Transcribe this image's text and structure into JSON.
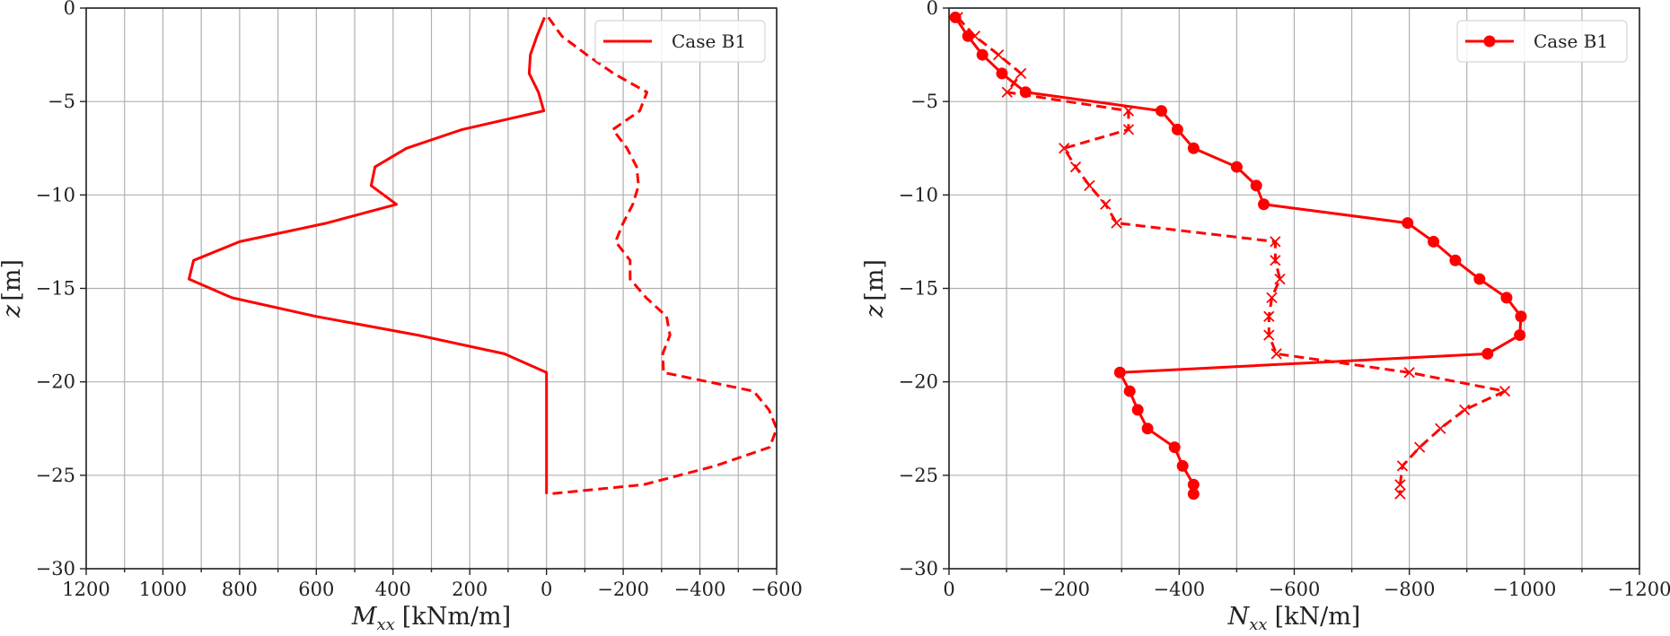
{
  "figure": {
    "colors": {
      "series": "#ff0000",
      "grid": "#b0b0b0",
      "axis": "#222222"
    }
  },
  "chart_data": [
    {
      "id": "moment",
      "type": "line",
      "title": "",
      "xlabel": "M_xx [kNm/m]",
      "xlabel_main": "M",
      "xlabel_sub": "xx",
      "xlabel_unit": "[kNm/m]",
      "ylabel": "z [m]",
      "ylabel_main": "z",
      "ylabel_unit": "[m]",
      "xlim": [
        1200,
        -600
      ],
      "ylim": [
        -30,
        0
      ],
      "xticks": [
        1200,
        1000,
        800,
        600,
        400,
        200,
        0,
        -200,
        -400,
        -600
      ],
      "xtick_labels": [
        "1200",
        "1000",
        "800",
        "600",
        "400",
        "200",
        "0",
        "−200",
        "−400",
        "−600"
      ],
      "xgrid": [
        1200,
        1100,
        1000,
        900,
        800,
        700,
        600,
        500,
        400,
        300,
        200,
        100,
        0,
        -100,
        -200,
        -300,
        -400,
        -500,
        -600
      ],
      "yticks": [
        0,
        -5,
        -10,
        -15,
        -20,
        -25,
        -30
      ],
      "ytick_labels": [
        "0",
        "−5",
        "−10",
        "−15",
        "−20",
        "−25",
        "−30"
      ],
      "grid": true,
      "legend": {
        "position": "upper right",
        "entries": [
          {
            "label": "Case B1",
            "style": "solid-line"
          }
        ]
      },
      "series": [
        {
          "name": "Case B1 (solid)",
          "style": "solid",
          "marker": "none",
          "x": [
            5,
            25,
            42,
            45,
            21,
            7,
            220,
            365,
            447,
            457,
            391,
            572,
            800,
            920,
            932,
            820,
            600,
            335,
            110,
            0,
            0,
            0,
            0,
            0,
            0,
            0,
            0
          ],
          "z": [
            -0.5,
            -1.5,
            -2.5,
            -3.5,
            -4.5,
            -5.5,
            -6.5,
            -7.5,
            -8.5,
            -9.5,
            -10.5,
            -11.5,
            -12.5,
            -13.5,
            -14.5,
            -15.5,
            -16.5,
            -17.5,
            -18.5,
            -19.5,
            -20.5,
            -21.5,
            -22.5,
            -23.5,
            -24.5,
            -25.5,
            -26.0
          ]
        },
        {
          "name": "Case B1 (dashed)",
          "style": "dashed",
          "marker": "none",
          "x": [
            -5,
            -40,
            -105,
            -175,
            -262,
            -243,
            -173,
            -210,
            -235,
            -240,
            -225,
            -200,
            -180,
            -218,
            -218,
            -260,
            -313,
            -322,
            -303,
            -305,
            -540,
            -580,
            -600,
            -582,
            -440,
            -253,
            -5
          ],
          "z": [
            -0.5,
            -1.5,
            -2.5,
            -3.5,
            -4.5,
            -5.5,
            -6.5,
            -7.5,
            -8.5,
            -9.5,
            -10.5,
            -11.5,
            -12.5,
            -13.5,
            -14.5,
            -15.5,
            -16.5,
            -17.5,
            -18.5,
            -19.5,
            -20.5,
            -21.5,
            -22.5,
            -23.5,
            -24.5,
            -25.5,
            -26.0
          ]
        }
      ]
    },
    {
      "id": "normal-force",
      "type": "line",
      "title": "",
      "xlabel": "N_xx [kN/m]",
      "xlabel_main": "N",
      "xlabel_sub": "xx",
      "xlabel_unit": "[kN/m]",
      "ylabel": "z [m]",
      "ylabel_main": "z",
      "ylabel_unit": "[m]",
      "xlim": [
        0,
        -1200
      ],
      "ylim": [
        -30,
        0
      ],
      "xticks": [
        0,
        -200,
        -400,
        -600,
        -800,
        -1000,
        -1200
      ],
      "xtick_labels": [
        "0",
        "−200",
        "−400",
        "−600",
        "−800",
        "−1000",
        "−1200"
      ],
      "xgrid": [
        0,
        -100,
        -200,
        -300,
        -400,
        -500,
        -600,
        -700,
        -800,
        -900,
        -1000,
        -1100,
        -1200
      ],
      "yticks": [
        0,
        -5,
        -10,
        -15,
        -20,
        -25,
        -30
      ],
      "ytick_labels": [
        "0",
        "−5",
        "−10",
        "−15",
        "−20",
        "−25",
        "−30"
      ],
      "grid": true,
      "legend": {
        "position": "upper right",
        "entries": [
          {
            "label": "Case B1",
            "style": "solid-line-circle-marker"
          }
        ]
      },
      "series": [
        {
          "name": "Case B1 (solid, circles)",
          "style": "solid",
          "marker": "circle",
          "x": [
            -11,
            -33,
            -58,
            -92,
            -133,
            -369,
            -397,
            -425,
            -500,
            -534,
            -547,
            -797,
            -842,
            -880,
            -922,
            -969,
            -994,
            -992,
            -936,
            -297,
            -314,
            -328,
            -345,
            -392,
            -406,
            -425,
            -425
          ],
          "z": [
            -0.5,
            -1.5,
            -2.5,
            -3.5,
            -4.5,
            -5.5,
            -6.5,
            -7.5,
            -8.5,
            -9.5,
            -10.5,
            -11.5,
            -12.5,
            -13.5,
            -14.5,
            -15.5,
            -16.5,
            -17.5,
            -18.5,
            -19.5,
            -20.5,
            -21.5,
            -22.5,
            -23.5,
            -24.5,
            -25.5,
            -26.0
          ]
        },
        {
          "name": "Case B1 (dashed, crosses)",
          "style": "dashed",
          "marker": "x",
          "x": [
            -15,
            -45,
            -86,
            -125,
            -101,
            -312,
            -312,
            -200,
            -220,
            -244,
            -272,
            -291,
            -567,
            -567,
            -575,
            -561,
            -556,
            -556,
            -569,
            -800,
            -966,
            -896,
            -854,
            -818,
            -788,
            -784,
            -784
          ],
          "z": [
            -0.5,
            -1.5,
            -2.5,
            -3.5,
            -4.5,
            -5.5,
            -6.5,
            -7.5,
            -8.5,
            -9.5,
            -10.5,
            -11.5,
            -12.5,
            -13.5,
            -14.5,
            -15.5,
            -16.5,
            -17.5,
            -18.5,
            -19.5,
            -20.5,
            -21.5,
            -22.5,
            -23.5,
            -24.5,
            -25.5,
            -26.0
          ]
        }
      ]
    }
  ]
}
